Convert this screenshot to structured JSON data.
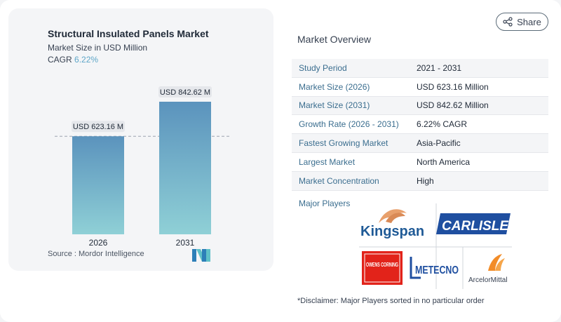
{
  "share": {
    "label": "Share",
    "icon": "share-icon"
  },
  "chart": {
    "title": "Structural Insulated Panels Market",
    "subtitle": "Market Size in USD Million",
    "cagr_label": "CAGR",
    "cagr_value": "6.22%",
    "source": "Source :  Mordor Intelligence"
  },
  "chart_data": {
    "type": "bar",
    "categories": [
      "2026",
      "2031"
    ],
    "values": [
      623.16,
      842.62
    ],
    "data_labels": [
      "USD 623.16 M",
      "USD 842.62 M"
    ],
    "title": "Structural Insulated Panels Market",
    "ylim": [
      0,
      842.62
    ],
    "grid": false,
    "reference_line_value": 623.16,
    "colors": {
      "bar_top": "#5b93bd",
      "bar_bottom": "#8fd0d6"
    }
  },
  "overview": {
    "title": "Market Overview",
    "rows": [
      {
        "label": "Study Period",
        "value": "2021 - 2031"
      },
      {
        "label": "Market Size (2026)",
        "value": "USD 623.16 Million"
      },
      {
        "label": "Market Size (2031)",
        "value": "USD 842.62 Million"
      },
      {
        "label": "Growth Rate (2026 - 2031)",
        "value": "6.22% CAGR"
      },
      {
        "label": "Fastest Growing Market",
        "value": "Asia-Pacific"
      },
      {
        "label": "Largest Market",
        "value": "North America"
      },
      {
        "label": "Market Concentration",
        "value": "High"
      }
    ]
  },
  "players": {
    "label": "Major Players",
    "logos": [
      "Kingspan",
      "CARLISLE",
      "OWENS CORNING",
      "METECNO",
      "ArcelorMittal"
    ]
  },
  "disclaimer": "*Disclaimer: Major Players sorted in no particular order"
}
